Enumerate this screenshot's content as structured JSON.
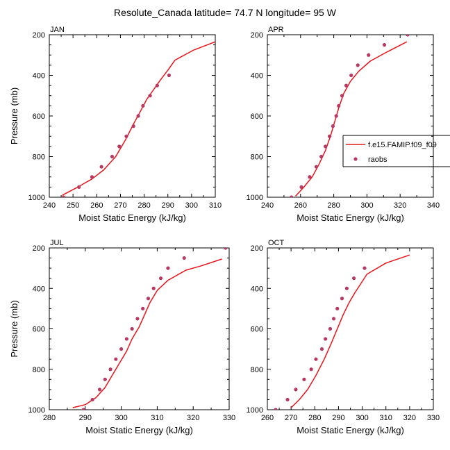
{
  "title": "Resolute_Canada  latitude= 74.7 N longitude= 95 W",
  "colors": {
    "model": "#e8131b",
    "obs": "#b83a63",
    "axis": "#000000"
  },
  "chart_data": [
    {
      "type": "line+scatter",
      "panel_label": "JAN",
      "xlabel": "Moist Static Energy (kJ/kg)",
      "ylabel": "Pressure (mb)",
      "xlim": [
        240,
        310
      ],
      "ylim": [
        200,
        1000
      ],
      "y_inverted": true,
      "x_ticks": [
        240,
        250,
        260,
        270,
        280,
        290,
        300,
        310
      ],
      "y_ticks": [
        200,
        400,
        600,
        800,
        1000
      ],
      "series": [
        {
          "name": "f.e15.FAMIP.f09_f09",
          "kind": "line",
          "x": [
            245.5,
            252,
            258,
            263,
            268,
            272,
            275.5,
            278.5,
            281,
            284,
            287,
            290,
            293,
            301,
            310
          ],
          "y": [
            990,
            950,
            910,
            865,
            800,
            720,
            640,
            575,
            520,
            470,
            420,
            375,
            325,
            275,
            235
          ]
        },
        {
          "name": "raobs",
          "kind": "scatter",
          "x": [
            246,
            252.5,
            258,
            262,
            266.5,
            269.5,
            272.5,
            275.5,
            277.5,
            279.5,
            282.5,
            285.5,
            290.5
          ],
          "y": [
            1000,
            950,
            900,
            850,
            800,
            750,
            700,
            650,
            600,
            550,
            500,
            450,
            400
          ]
        }
      ]
    },
    {
      "type": "line+scatter",
      "panel_label": "APR",
      "xlabel": "Moist Static Energy (kJ/kg)",
      "ylabel": "",
      "xlim": [
        240,
        340
      ],
      "ylim": [
        200,
        1000
      ],
      "y_inverted": true,
      "x_ticks": [
        240,
        260,
        280,
        300,
        320,
        340
      ],
      "y_ticks": [
        200,
        400,
        600,
        800,
        1000
      ],
      "series": [
        {
          "name": "f.e15.FAMIP.f09_f09",
          "kind": "line",
          "x": [
            257,
            262,
            267,
            271,
            275,
            278,
            280.5,
            283,
            286,
            290,
            295,
            302,
            312,
            324
          ],
          "y": [
            995,
            950,
            900,
            840,
            770,
            700,
            630,
            560,
            490,
            430,
            380,
            330,
            285,
            235
          ]
        },
        {
          "name": "raobs",
          "kind": "scatter",
          "x": [
            254.5,
            260.5,
            265.5,
            269.5,
            272.5,
            275,
            277.5,
            279.5,
            281.5,
            283,
            285,
            287.5,
            290.5,
            294.5,
            301,
            310.5,
            324.5
          ],
          "y": [
            1000,
            950,
            900,
            850,
            800,
            750,
            700,
            650,
            600,
            550,
            500,
            450,
            400,
            350,
            300,
            250,
            200
          ]
        }
      ]
    },
    {
      "type": "line+scatter",
      "panel_label": "JUL",
      "xlabel": "Moist Static Energy (kJ/kg)",
      "ylabel": "Pressure (mb)",
      "xlim": [
        280,
        330
      ],
      "ylim": [
        200,
        1000
      ],
      "y_inverted": true,
      "x_ticks": [
        280,
        290,
        300,
        310,
        320,
        330
      ],
      "y_ticks": [
        200,
        400,
        600,
        800,
        1000
      ],
      "series": [
        {
          "name": "f.e15.FAMIP.f09_f09",
          "kind": "line",
          "x": [
            286.5,
            290,
            293,
            295.5,
            297.5,
            299.5,
            301.5,
            303,
            305,
            306.5,
            308,
            310,
            313,
            318,
            322,
            328
          ],
          "y": [
            990,
            975,
            940,
            890,
            830,
            770,
            710,
            650,
            590,
            530,
            470,
            410,
            360,
            310,
            290,
            255
          ]
        },
        {
          "name": "raobs",
          "kind": "scatter",
          "x": [
            289.5,
            292,
            294,
            295.5,
            297,
            298.5,
            300,
            301.5,
            303,
            304.5,
            306,
            307.5,
            309,
            311,
            313,
            317.5,
            329
          ],
          "y": [
            1000,
            950,
            900,
            850,
            800,
            750,
            700,
            650,
            600,
            550,
            500,
            450,
            400,
            350,
            300,
            250,
            200
          ]
        }
      ]
    },
    {
      "type": "line+scatter",
      "panel_label": "OCT",
      "xlabel": "Moist Static Energy (kJ/kg)",
      "ylabel": "",
      "xlim": [
        260,
        330
      ],
      "ylim": [
        200,
        1000
      ],
      "y_inverted": true,
      "x_ticks": [
        260,
        270,
        280,
        290,
        300,
        310,
        320,
        330
      ],
      "y_ticks": [
        200,
        400,
        600,
        800,
        1000
      ],
      "series": [
        {
          "name": "f.e15.FAMIP.f09_f09",
          "kind": "line",
          "x": [
            270,
            273.5,
            277,
            280.5,
            284,
            287,
            289.5,
            292,
            294.5,
            297,
            299.5,
            302,
            310,
            320
          ],
          "y": [
            990,
            950,
            900,
            830,
            750,
            670,
            600,
            530,
            470,
            420,
            375,
            330,
            275,
            235
          ]
        },
        {
          "name": "raobs",
          "kind": "scatter",
          "x": [
            263.5,
            268.5,
            272,
            275.5,
            278.5,
            280.5,
            283,
            284.5,
            286.5,
            288,
            289.5,
            291.5,
            293.5,
            296.5,
            301
          ],
          "y": [
            1000,
            950,
            900,
            850,
            800,
            750,
            700,
            650,
            600,
            550,
            500,
            450,
            400,
            350,
            300
          ]
        }
      ]
    }
  ],
  "legend": {
    "location": "right of APR panel",
    "entries": [
      {
        "label": "f.e15.FAMIP.f09_f09",
        "kind": "line"
      },
      {
        "label": "raobs",
        "kind": "marker"
      }
    ]
  }
}
